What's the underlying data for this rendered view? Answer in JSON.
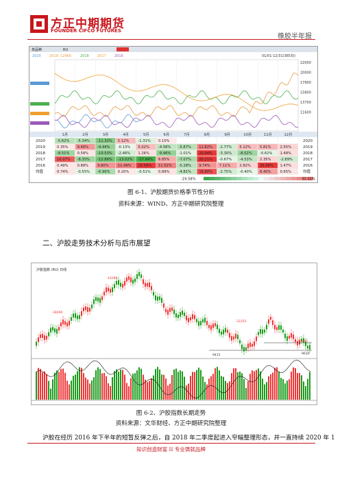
{
  "header": {
    "logo_cn": "方正中期期货",
    "logo_en": "FOUNDER CIFCO FUTURES",
    "report": "橡胶半年报"
  },
  "figure1": {
    "toolbar": [
      "单品种",
      "RU",
      "01/01-12/31(365日)"
    ],
    "legend": [
      "2020",
      "2019: 12960",
      "2018",
      "2017",
      "2016"
    ],
    "axis": [
      "22000",
      "20000",
      "17900",
      "15800",
      "13700",
      "11600"
    ],
    "months": [
      "1月",
      "2月",
      "3月",
      "4月",
      "5月",
      "6月",
      "7月",
      "8月",
      "9月",
      "10月",
      "11月",
      "12月"
    ],
    "rows": [
      {
        "label": "2020",
        "cells": [
          "-5.62%",
          "-5.34%",
          "-11.32%",
          "5.12%",
          "-1.31%",
          "0.10%"
        ]
      },
      {
        "label": "2019",
        "cells": [
          "0.35%",
          "9.46%",
          "-9.44%",
          "-0.13%",
          "5.02%",
          "-4.58%",
          "-5.87%",
          "11.82%",
          "-2.77%",
          "5.12%",
          "5.81%",
          "2.55%"
        ]
      },
      {
        "label": "2018",
        "cells": [
          "-8.51%",
          "0.58%",
          "-10.53%",
          "-2.46%",
          "1.26%",
          "-9.46%",
          "-1.01%",
          "20.94%",
          "-3.30%",
          "-8.52%",
          "-0.62%",
          "1.48%"
        ]
      },
      {
        "label": "2017",
        "cells": [
          "16.07%",
          "-8.35%",
          "-12.86%",
          "-13.02%",
          "-17.94%",
          "6.85%",
          "-7.07%",
          "20.21%",
          "-0.67%",
          "-4.53%",
          "2.35%",
          "-2.89%"
        ]
      },
      {
        "label": "2016",
        "cells": [
          "0.49%",
          "0.88%",
          "9.80%",
          "11.49%",
          "19.58%",
          "11.52%",
          "-5.28%",
          "9.74%",
          "7.11%",
          "2.82%",
          "26.06%",
          "1.47%"
        ]
      },
      {
        "label": "均值",
        "cells": [
          "0.74%",
          "-0.55%",
          "-6.99%",
          "0.20%",
          "-0.51%",
          "0.89%",
          "-4.81%",
          "16.90%",
          "-2.75%",
          "-0.40%",
          "8.40%",
          "0.65%"
        ]
      }
    ],
    "scale": [
      "-19.58%",
      "33.11%"
    ],
    "caption": "图 6-1、沪胶期货价格季节性分析",
    "source": "资料来源：WIND、方正中期研究院整理"
  },
  "heading": "二、沪胶走势技术分析与后市展望",
  "figure2": {
    "title": "沪胶指数 (RU) 日线",
    "peaks": [
      "43280",
      "28490",
      "22355",
      "13445",
      "9415",
      "9630"
    ],
    "caption": "图 6-2、沪胶指数长期走势",
    "source": "资料来源：文华财经、方正中期研究院整理"
  },
  "paragraph": "沪胶在经历 2016 年下半年的短暂反弹之后，自 2018 年二季度起进入窄幅整理形态，并一直持续 2020 年 1",
  "footer": "知识创造财富 II 专业铸就品牌"
}
